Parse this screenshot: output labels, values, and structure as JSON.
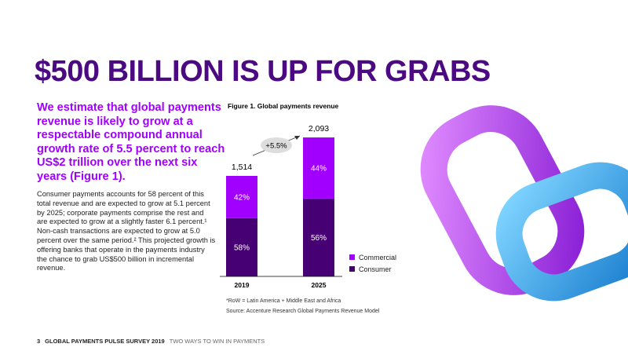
{
  "header": {
    "title": "$500 BILLION IS UP FOR GRABS"
  },
  "lead": "We estimate that global payments revenue is likely to grow at a respectable compound annual growth rate of 5.5 percent to reach US$2 trillion over the next six years (Figure 1).",
  "body": "Consumer payments accounts for 58 percent of this total revenue and are expected to grow at 5.1 percent by 2025; corporate payments comprise the rest and are expected to grow at a slightly faster 6.1 percent.¹ Non-cash transactions are expected to grow at 5.0 percent over the same period.² This projected growth is offering banks that operate in the payments industry the chance to grab US$500 billion in incremental revenue.",
  "chart_data": {
    "type": "stacked_bar",
    "title": "Figure 1. Global payments revenue",
    "categories": [
      "2019",
      "2025"
    ],
    "series": [
      {
        "name": "Consumer",
        "color": "#460073",
        "values": [
          58,
          56
        ],
        "value_labels": [
          "58%",
          "56%"
        ]
      },
      {
        "name": "Commercial",
        "color": "#a100ff",
        "values": [
          42,
          44
        ],
        "value_labels": [
          "42%",
          "44%"
        ]
      }
    ],
    "totals": {
      "values": [
        1514,
        2093
      ],
      "value_labels": [
        "1,514",
        "2,093"
      ]
    },
    "annotation": "+5.5%",
    "notes": [
      "*RoW = Latin America + Middle East and Africa",
      "Source: Accenture Research Global Payments Revenue Model"
    ]
  },
  "footer": {
    "page": "3",
    "report": "GLOBAL PAYMENTS PULSE SURVEY 2019",
    "section": "TWO WAYS TO WIN IN PAYMENTS"
  }
}
